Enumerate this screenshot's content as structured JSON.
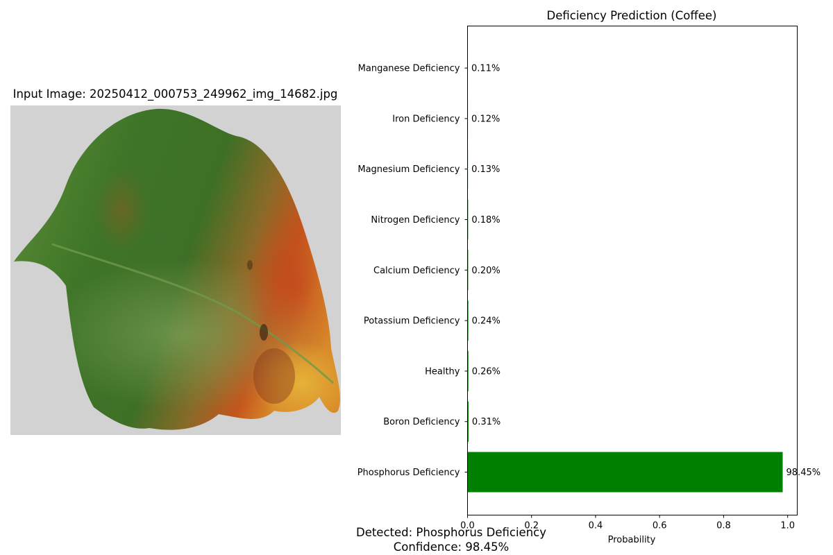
{
  "image_panel": {
    "title": "Input Image: 20250412_000753_249962_img_14682.jpg"
  },
  "detection": {
    "detected_text": "Detected: Phosphorus Deficiency",
    "confidence_text": "Confidence: 98.45%"
  },
  "colors": {
    "bar": "#008000"
  },
  "chart_data": {
    "type": "bar",
    "orientation": "horizontal",
    "title": "Deficiency Prediction (Coffee)",
    "xlabel": "Probability",
    "ylabel": "",
    "xlim": [
      0,
      1.03
    ],
    "xticks": [
      0.0,
      0.2,
      0.4,
      0.6,
      0.8,
      1.0
    ],
    "xtick_labels": [
      "0.0",
      "0.2",
      "0.4",
      "0.6",
      "0.8",
      "1.0"
    ],
    "categories": [
      "Phosphorus Deficiency",
      "Boron Deficiency",
      "Healthy",
      "Potassium Deficiency",
      "Calcium Deficiency",
      "Nitrogen Deficiency",
      "Magnesium Deficiency",
      "Iron Deficiency",
      "Manganese Deficiency"
    ],
    "values": [
      0.9845,
      0.0031,
      0.0026,
      0.0024,
      0.002,
      0.0018,
      0.0013,
      0.0012,
      0.0011
    ],
    "value_labels": [
      "98.45%",
      "0.31%",
      "0.26%",
      "0.24%",
      "0.20%",
      "0.18%",
      "0.13%",
      "0.12%",
      "0.11%"
    ],
    "grid": false
  }
}
